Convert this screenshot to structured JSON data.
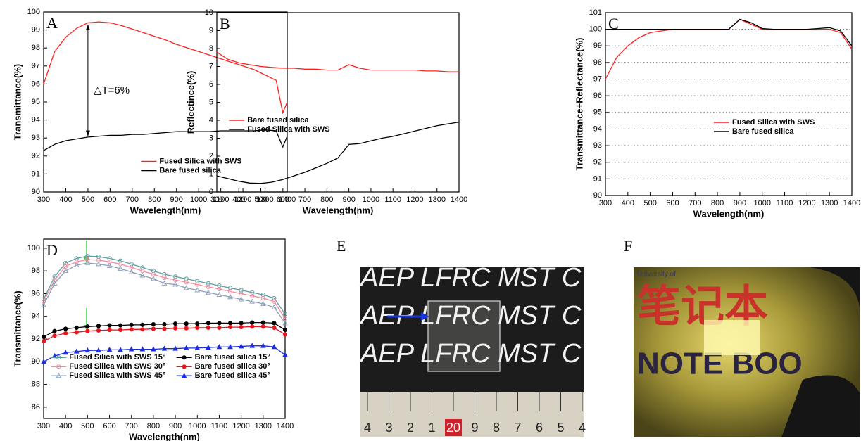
{
  "chart_data": [
    {
      "type": "line",
      "panel_label": "A",
      "xlabel": "Wavelength(nm)",
      "ylabel": "Transmittance(%)",
      "x": [
        300,
        350,
        400,
        450,
        500,
        550,
        600,
        650,
        700,
        750,
        800,
        850,
        900,
        950,
        1000,
        1050,
        1100,
        1150,
        1200,
        1250,
        1300,
        1350,
        1380,
        1400
      ],
      "series": [
        {
          "name": "Fused Silica with SWS",
          "color": "#ff2020",
          "values": [
            96.0,
            97.8,
            98.6,
            99.1,
            99.4,
            99.45,
            99.4,
            99.25,
            99.05,
            98.85,
            98.65,
            98.45,
            98.2,
            98.0,
            97.8,
            97.6,
            97.4,
            97.2,
            97.0,
            96.8,
            96.5,
            96.2,
            94.4,
            95.0
          ]
        },
        {
          "name": "Bare fused silica",
          "color": "#000000",
          "values": [
            92.3,
            92.65,
            92.85,
            92.95,
            93.05,
            93.1,
            93.15,
            93.15,
            93.2,
            93.2,
            93.25,
            93.3,
            93.35,
            93.35,
            93.35,
            93.35,
            93.4,
            93.4,
            93.4,
            93.4,
            93.45,
            93.4,
            92.5,
            93.1
          ]
        }
      ],
      "xlim": [
        300,
        1400
      ],
      "xticks": [
        300,
        400,
        500,
        600,
        700,
        800,
        900,
        1000,
        1100,
        1200,
        1300,
        1400
      ],
      "ylim": [
        90,
        100
      ],
      "yticks": [
        90,
        91,
        92,
        93,
        94,
        95,
        96,
        97,
        98,
        99,
        100
      ],
      "legend": "lower right",
      "annotation": {
        "text": "△T=6%",
        "x": 500,
        "y_from": 99.3,
        "y_to": 93.1
      }
    },
    {
      "type": "line",
      "panel_label": "B",
      "xlabel": "Wavelength(nm)",
      "ylabel": "Reflectince(%)",
      "x": [
        300,
        350,
        400,
        450,
        500,
        550,
        600,
        650,
        700,
        750,
        800,
        850,
        900,
        950,
        1000,
        1050,
        1100,
        1150,
        1200,
        1250,
        1300,
        1350,
        1400
      ],
      "series": [
        {
          "name": "Bare fused silica",
          "color": "#ff2020",
          "values": [
            7.8,
            7.4,
            7.2,
            7.1,
            7.0,
            6.95,
            6.9,
            6.9,
            6.85,
            6.85,
            6.8,
            6.8,
            7.1,
            6.9,
            6.8,
            6.8,
            6.8,
            6.8,
            6.8,
            6.75,
            6.75,
            6.7,
            6.7
          ]
        },
        {
          "name": "Fused Silica with SWS",
          "color": "#000000",
          "values": [
            0.9,
            0.75,
            0.6,
            0.5,
            0.48,
            0.55,
            0.7,
            0.9,
            1.1,
            1.35,
            1.6,
            1.9,
            2.65,
            2.7,
            2.85,
            3.0,
            3.1,
            3.25,
            3.4,
            3.55,
            3.7,
            3.8,
            3.9
          ]
        }
      ],
      "xlim": [
        300,
        1400
      ],
      "xticks": [
        300,
        400,
        500,
        600,
        700,
        800,
        900,
        1000,
        1100,
        1200,
        1300,
        1400
      ],
      "ylim": [
        0,
        10
      ],
      "yticks": [
        0,
        1,
        2,
        3,
        4,
        5,
        6,
        7,
        8,
        9,
        10
      ],
      "legend": "center left"
    },
    {
      "type": "line",
      "panel_label": "C",
      "xlabel": "Wavelength(nm)",
      "ylabel": "Transmittance+Reflectance(%)",
      "x": [
        300,
        350,
        400,
        450,
        500,
        550,
        600,
        650,
        700,
        750,
        800,
        850,
        900,
        950,
        1000,
        1050,
        1100,
        1150,
        1200,
        1250,
        1300,
        1350,
        1400
      ],
      "series": [
        {
          "name": "Fused Silica with SWS",
          "color": "#ff2020",
          "values": [
            97.0,
            98.3,
            99.0,
            99.5,
            99.8,
            99.9,
            100.0,
            100.0,
            100.0,
            100.0,
            100.0,
            100.0,
            100.6,
            100.3,
            100.0,
            100.0,
            100.0,
            100.0,
            100.0,
            100.0,
            100.0,
            99.8,
            98.8
          ]
        },
        {
          "name": "Bare fused silica",
          "color": "#000000",
          "values": [
            100.0,
            100.0,
            100.0,
            100.0,
            100.0,
            100.0,
            100.0,
            100.0,
            100.0,
            100.0,
            100.0,
            100.0,
            100.6,
            100.4,
            100.05,
            100.0,
            100.0,
            100.0,
            100.0,
            100.05,
            100.1,
            99.9,
            99.0
          ]
        }
      ],
      "xlim": [
        300,
        1400
      ],
      "xticks": [
        300,
        400,
        500,
        600,
        700,
        800,
        900,
        1000,
        1100,
        1200,
        1300,
        1400
      ],
      "ylim": [
        90,
        101
      ],
      "yticks": [
        90,
        91,
        92,
        93,
        94,
        95,
        96,
        97,
        98,
        99,
        100,
        101
      ],
      "grid": "dotted",
      "legend": "center right"
    },
    {
      "type": "line",
      "panel_label": "D",
      "xlabel": "Wavelength(nm)",
      "ylabel": "Transmittance(%)",
      "x": [
        300,
        350,
        400,
        450,
        500,
        550,
        600,
        650,
        700,
        750,
        800,
        850,
        900,
        950,
        1000,
        1050,
        1100,
        1150,
        1200,
        1250,
        1300,
        1350,
        1400
      ],
      "series": [
        {
          "name": "Fused Silica with SWS 15°",
          "color": "#5f9ea0",
          "marker": "circle-open",
          "values": [
            95.5,
            97.5,
            98.7,
            99.1,
            99.3,
            99.25,
            99.1,
            98.9,
            98.6,
            98.3,
            98.0,
            97.7,
            97.5,
            97.3,
            97.1,
            96.9,
            96.7,
            96.5,
            96.3,
            96.1,
            95.9,
            95.6,
            94.2
          ]
        },
        {
          "name": "Fused Silica with SWS 30°",
          "color": "#f08ca0",
          "marker": "circle-open",
          "values": [
            95.3,
            97.2,
            98.4,
            98.8,
            99.0,
            98.95,
            98.8,
            98.6,
            98.3,
            98.0,
            97.7,
            97.4,
            97.2,
            97.0,
            96.8,
            96.6,
            96.4,
            96.2,
            96.0,
            95.8,
            95.6,
            95.3,
            93.8
          ]
        },
        {
          "name": "Fused Silica with SWS 45°",
          "color": "#8fa0b8",
          "marker": "triangle-open",
          "values": [
            95.0,
            96.9,
            98.0,
            98.5,
            98.7,
            98.6,
            98.45,
            98.2,
            97.9,
            97.6,
            97.3,
            96.9,
            96.8,
            96.5,
            96.3,
            96.1,
            95.9,
            95.7,
            95.5,
            95.3,
            95.1,
            94.8,
            93.4
          ]
        },
        {
          "name": "Bare fused silica 15°",
          "color": "#000000",
          "marker": "circle-filled",
          "values": [
            92.2,
            92.7,
            92.9,
            93.0,
            93.1,
            93.15,
            93.2,
            93.2,
            93.25,
            93.25,
            93.3,
            93.3,
            93.35,
            93.35,
            93.35,
            93.4,
            93.4,
            93.4,
            93.4,
            93.45,
            93.45,
            93.4,
            92.8
          ]
        },
        {
          "name": "Bare fused silica 30°",
          "color": "#e8141e",
          "marker": "circle-filled",
          "values": [
            91.8,
            92.3,
            92.5,
            92.6,
            92.7,
            92.75,
            92.8,
            92.8,
            92.85,
            92.85,
            92.9,
            92.9,
            92.95,
            92.95,
            93.0,
            93.0,
            93.0,
            93.05,
            93.05,
            93.1,
            93.1,
            93.0,
            92.4
          ]
        },
        {
          "name": "Bare fused silica 45°",
          "color": "#1a2ee0",
          "marker": "triangle-filled",
          "values": [
            90.0,
            90.5,
            90.8,
            90.9,
            91.0,
            91.0,
            91.05,
            91.05,
            91.1,
            91.1,
            91.1,
            91.15,
            91.15,
            91.2,
            91.2,
            91.25,
            91.3,
            91.3,
            91.35,
            91.4,
            91.4,
            91.3,
            90.6
          ]
        }
      ],
      "xlim": [
        300,
        1400
      ],
      "xticks": [
        300,
        400,
        500,
        600,
        700,
        800,
        900,
        1000,
        1100,
        1200,
        1300,
        1400
      ],
      "ylim": [
        85,
        100.8
      ],
      "yticks": [
        86,
        88,
        90,
        92,
        94,
        96,
        98,
        100
      ],
      "legend": "lower left",
      "legend_columns": 2
    }
  ],
  "photos": [
    {
      "label": "E",
      "texts": [
        "AEP LFRC MST C",
        "AEP LFRC MST C",
        "AEP LFRC MST C"
      ],
      "ruler": [
        "4",
        "3",
        "2",
        "1",
        "20",
        "9",
        "8",
        "7",
        "6",
        "5",
        "4"
      ]
    },
    {
      "label": "F",
      "texts": [
        "University of",
        "笔记本",
        "NOTE BOO"
      ]
    }
  ]
}
